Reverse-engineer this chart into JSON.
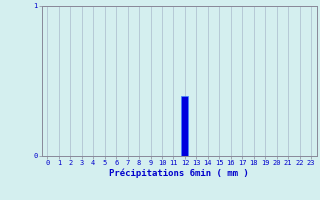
{
  "title": "",
  "xlabel": "Précipitations 6min ( mm )",
  "ylabel": "",
  "background_color": "#d4efef",
  "bar_color": "#0000dd",
  "bar_edge_color": "#4488ff",
  "text_color": "#0000cc",
  "grid_color_h": "#cc9999",
  "grid_color_v": "#aabbcc",
  "x_values": [
    0,
    1,
    2,
    3,
    4,
    5,
    6,
    7,
    8,
    9,
    10,
    11,
    12,
    13,
    14,
    15,
    16,
    17,
    18,
    19,
    20,
    21,
    22,
    23
  ],
  "precipitation": [
    0,
    0,
    0,
    0,
    0,
    0,
    0,
    0,
    0,
    0,
    0,
    0,
    0.4,
    0,
    0,
    0,
    0,
    0,
    0,
    0,
    0,
    0,
    0,
    0
  ],
  "ylim": [
    0,
    1.0
  ],
  "xlim": [
    -0.5,
    23.5
  ],
  "yticks": [
    0,
    1
  ],
  "xtick_labels": [
    "0",
    "1",
    "2",
    "3",
    "4",
    "5",
    "6",
    "7",
    "8",
    "9",
    "10",
    "11",
    "12",
    "13",
    "14",
    "15",
    "16",
    "17",
    "18",
    "19",
    "20",
    "21",
    "22",
    "23"
  ],
  "tick_fontsize": 5.0,
  "xlabel_fontsize": 6.5,
  "spine_color": "#888899"
}
